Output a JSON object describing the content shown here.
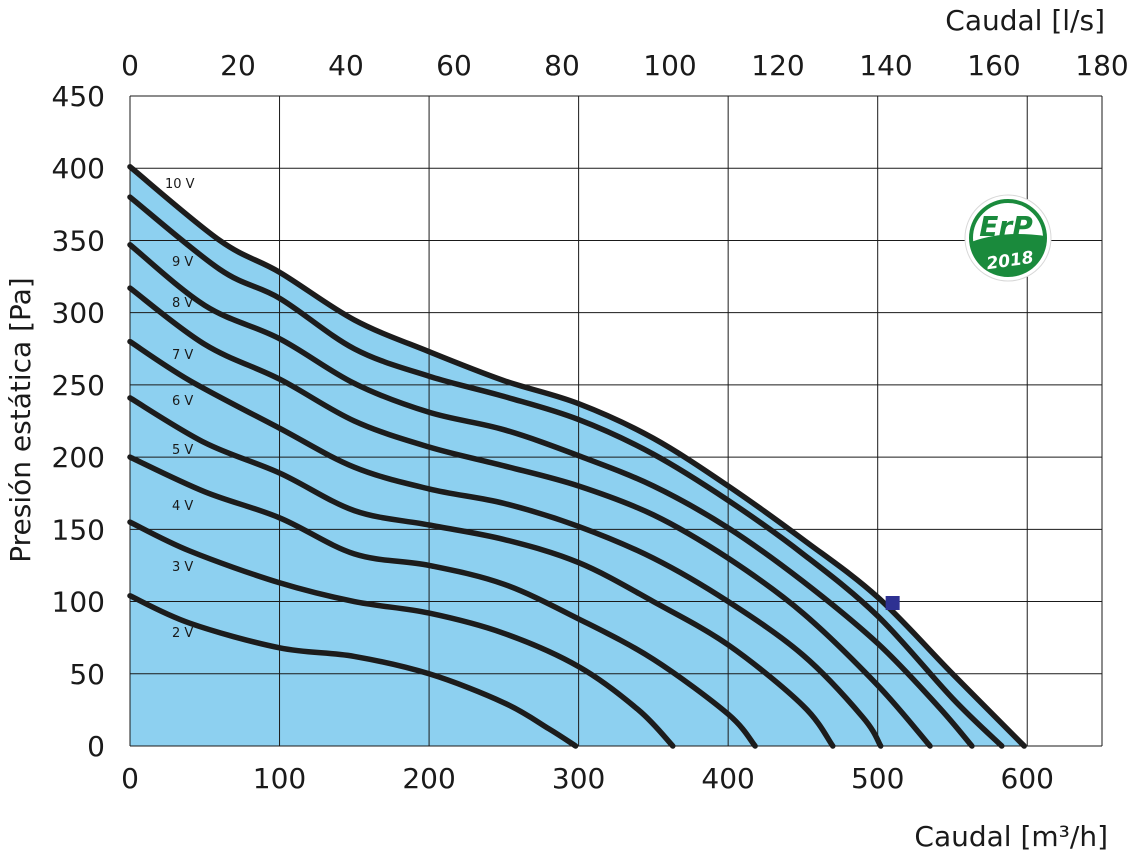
{
  "chart_data": {
    "type": "line",
    "x_bottom": {
      "label": "Caudal [m³/h]",
      "ticks": [
        "0",
        "100",
        "200",
        "300",
        "400",
        "500",
        "600"
      ],
      "range": [
        0,
        650
      ]
    },
    "x_top": {
      "label": "Caudal [l/s]",
      "ticks": [
        "0",
        "20",
        "40",
        "60",
        "80",
        "100",
        "120",
        "140",
        "160",
        "180"
      ],
      "range": [
        0,
        180
      ]
    },
    "y": {
      "label": "Presión estática [Pa]",
      "ticks": [
        "0",
        "50",
        "100",
        "150",
        "200",
        "250",
        "300",
        "350",
        "400",
        "450"
      ],
      "range": [
        0,
        450
      ]
    },
    "grid": true,
    "fill_color": "#8dd0f0",
    "line_color": "#1c1c1c",
    "operating_point": {
      "x": 510,
      "y": 99,
      "color": "#2e3192"
    },
    "badge": {
      "text": "ErP",
      "year": "2018",
      "color": "#1a8a3c"
    },
    "series": [
      {
        "name": "2 V",
        "points": [
          [
            0,
            104
          ],
          [
            40,
            85
          ],
          [
            100,
            68
          ],
          [
            150,
            62
          ],
          [
            200,
            50
          ],
          [
            250,
            30
          ],
          [
            280,
            12
          ],
          [
            298,
            0
          ]
        ]
      },
      {
        "name": "3 V",
        "points": [
          [
            0,
            155
          ],
          [
            40,
            135
          ],
          [
            100,
            113
          ],
          [
            150,
            100
          ],
          [
            200,
            92
          ],
          [
            250,
            78
          ],
          [
            300,
            55
          ],
          [
            340,
            25
          ],
          [
            363,
            0
          ]
        ]
      },
      {
        "name": "4 V",
        "points": [
          [
            0,
            200
          ],
          [
            50,
            176
          ],
          [
            100,
            158
          ],
          [
            150,
            133
          ],
          [
            200,
            125
          ],
          [
            250,
            112
          ],
          [
            300,
            88
          ],
          [
            350,
            60
          ],
          [
            400,
            22
          ],
          [
            418,
            0
          ]
        ]
      },
      {
        "name": "5 V",
        "points": [
          [
            0,
            241
          ],
          [
            50,
            210
          ],
          [
            100,
            189
          ],
          [
            150,
            163
          ],
          [
            200,
            153
          ],
          [
            250,
            143
          ],
          [
            300,
            127
          ],
          [
            350,
            100
          ],
          [
            400,
            70
          ],
          [
            450,
            28
          ],
          [
            470,
            0
          ]
        ]
      },
      {
        "name": "6 V",
        "points": [
          [
            0,
            280
          ],
          [
            40,
            253
          ],
          [
            100,
            220
          ],
          [
            150,
            193
          ],
          [
            200,
            178
          ],
          [
            250,
            168
          ],
          [
            300,
            152
          ],
          [
            350,
            130
          ],
          [
            400,
            100
          ],
          [
            450,
            63
          ],
          [
            490,
            20
          ],
          [
            502,
            0
          ]
        ]
      },
      {
        "name": "7 V",
        "points": [
          [
            0,
            317
          ],
          [
            50,
            278
          ],
          [
            100,
            254
          ],
          [
            150,
            225
          ],
          [
            200,
            207
          ],
          [
            250,
            194
          ],
          [
            300,
            180
          ],
          [
            350,
            160
          ],
          [
            400,
            130
          ],
          [
            450,
            92
          ],
          [
            500,
            42
          ],
          [
            535,
            0
          ]
        ]
      },
      {
        "name": "8 V",
        "points": [
          [
            0,
            347
          ],
          [
            50,
            305
          ],
          [
            100,
            282
          ],
          [
            150,
            251
          ],
          [
            200,
            231
          ],
          [
            250,
            219
          ],
          [
            300,
            201
          ],
          [
            350,
            180
          ],
          [
            400,
            151
          ],
          [
            450,
            114
          ],
          [
            500,
            71
          ],
          [
            540,
            28
          ],
          [
            563,
            0
          ]
        ]
      },
      {
        "name": "9 V",
        "points": [
          [
            0,
            380
          ],
          [
            60,
            330
          ],
          [
            100,
            310
          ],
          [
            150,
            275
          ],
          [
            200,
            256
          ],
          [
            250,
            242
          ],
          [
            300,
            226
          ],
          [
            350,
            202
          ],
          [
            400,
            170
          ],
          [
            450,
            133
          ],
          [
            500,
            90
          ],
          [
            550,
            33
          ],
          [
            583,
            0
          ]
        ]
      },
      {
        "name": "10 V",
        "points": [
          [
            0,
            401
          ],
          [
            60,
            350
          ],
          [
            100,
            328
          ],
          [
            150,
            295
          ],
          [
            200,
            273
          ],
          [
            250,
            253
          ],
          [
            300,
            237
          ],
          [
            350,
            213
          ],
          [
            400,
            180
          ],
          [
            450,
            143
          ],
          [
            500,
            103
          ],
          [
            550,
            50
          ],
          [
            598,
            0
          ]
        ]
      }
    ]
  }
}
